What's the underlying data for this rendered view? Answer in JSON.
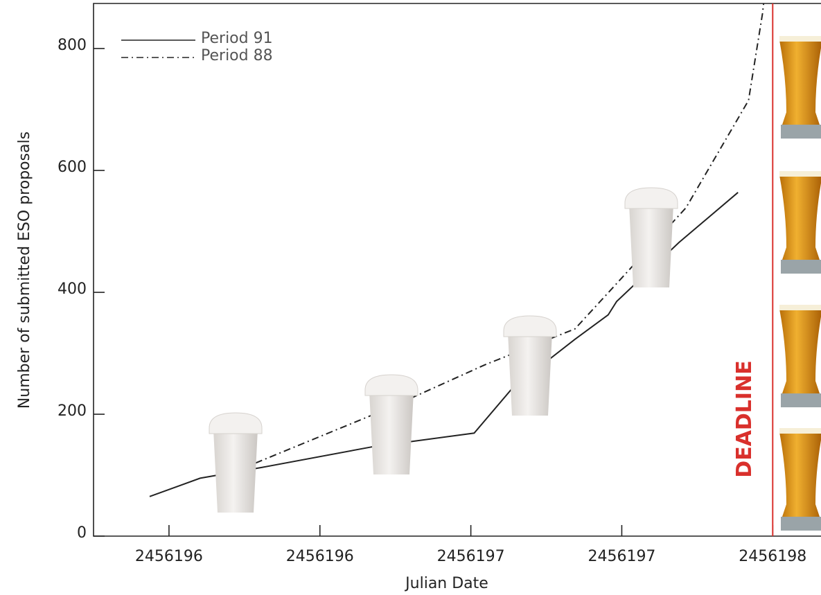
{
  "chart_data": {
    "type": "line",
    "x_label": "Julian Date",
    "y_label": "Number of submitted ESO proposals",
    "annotation": "DEADLINE",
    "deadline": 2456198.0,
    "deadline_color": "#d9302c",
    "xlim": [
      2456195.75,
      2456198.16
    ],
    "ylim": [
      0,
      874
    ],
    "xticks": [
      {
        "value": 2456196.0,
        "label": "2456196"
      },
      {
        "value": 2456196.5,
        "label": "2456196"
      },
      {
        "value": 2456197.0,
        "label": "2456197"
      },
      {
        "value": 2456197.5,
        "label": "2456197"
      },
      {
        "value": 2456198.0,
        "label": "2456198"
      }
    ],
    "yticks": [
      0,
      200,
      400,
      600,
      800
    ],
    "series": [
      {
        "name": "Period 91",
        "color": "#222222",
        "dash": "solid",
        "x": [
          2456195.936,
          2456196.103,
          2456196.31,
          2456196.678,
          2456197.011,
          2456197.138,
          2456197.345,
          2456197.455,
          2456197.483,
          2456197.69,
          2456197.885
        ],
        "values": [
          65,
          95,
          113,
          147,
          169,
          243,
          323,
          363,
          385,
          482,
          564
        ]
      },
      {
        "name": "Period 88",
        "color": "#222222",
        "dash": "dashdot",
        "x": [
          2456196.287,
          2456196.724,
          2456197.046,
          2456197.345,
          2456197.46,
          2456197.713,
          2456197.92,
          2456197.966,
          2456197.97
        ],
        "values": [
          120,
          209,
          281,
          340,
          402,
          539,
          715,
          857,
          874
        ]
      }
    ]
  }
}
